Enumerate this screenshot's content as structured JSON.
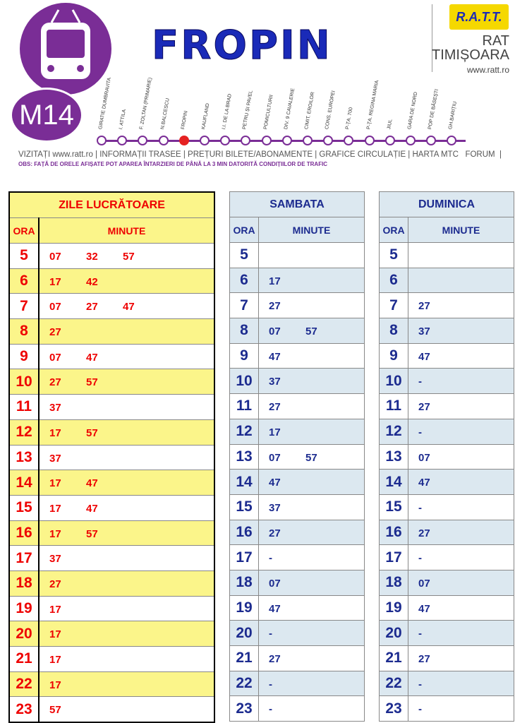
{
  "header": {
    "title": "FROPIN",
    "route": "M14",
    "org_logo": "R.A.T.T.",
    "org_name_1": "RAT",
    "org_name_2": "TIMIȘOARA",
    "website": "www.ratt.ro",
    "stops": [
      "GIRATIE DUMBRAVITA",
      "I. ATTILA",
      "F. ZOLTAN (PRIMARIE)",
      "N.BALCESCU",
      "FROPIN",
      "KAUFLAND",
      "I.I. DE LA BRAD",
      "PETRU ȘI PAVEL",
      "POMICULTURII",
      "DIV. 9 CAVALERIE",
      "CIMIT. EROILOR",
      "CONS. EUROPEI",
      "P-ȚA. 700",
      "P-ȚA. REGINA MARIA",
      "JIUL",
      "GARA DE NORD",
      "POP DE BĂSEȘTI",
      "GH.BARIȚIU"
    ],
    "current_stop": "FROPIN",
    "links": "VIZITAȚI www.ratt.ro | INFORMAȚII TRASEE | PREȚURI BILETE/ABONAMENTE | GRAFICE CIRCULAȚIE | HARTA MTC   FORUM  |",
    "notice": "OBS: FAȚĂ DE ORELE AFIȘATE POT APAREA ÎNTARZIERI DE PÂNĂ LA 3 MIN DATORITĂ CONDIȚIILOR DE TRAFIC"
  },
  "colors": {
    "purple": "#7a2d96",
    "blue": "#1a2ab8",
    "red": "#e00000",
    "yellow": "#fbf58a",
    "lightblue": "#dce8f0"
  },
  "tables": [
    {
      "title": "ZILE LUCRĂTOARE",
      "ora": "ORA",
      "minute": "MINUTE",
      "rows": [
        [
          "5",
          [
            "07",
            "32",
            "57"
          ]
        ],
        [
          "6",
          [
            "17",
            "42"
          ]
        ],
        [
          "7",
          [
            "07",
            "27",
            "47"
          ]
        ],
        [
          "8",
          [
            "27"
          ]
        ],
        [
          "9",
          [
            "07",
            "47"
          ]
        ],
        [
          "10",
          [
            "27",
            "57"
          ]
        ],
        [
          "11",
          [
            "37"
          ]
        ],
        [
          "12",
          [
            "17",
            "57"
          ]
        ],
        [
          "13",
          [
            "37"
          ]
        ],
        [
          "14",
          [
            "17",
            "47"
          ]
        ],
        [
          "15",
          [
            "17",
            "47"
          ]
        ],
        [
          "16",
          [
            "17",
            "57"
          ]
        ],
        [
          "17",
          [
            "37"
          ]
        ],
        [
          "18",
          [
            "27"
          ]
        ],
        [
          "19",
          [
            "17"
          ]
        ],
        [
          "20",
          [
            "17"
          ]
        ],
        [
          "21",
          [
            "17"
          ]
        ],
        [
          "22",
          [
            "17"
          ]
        ],
        [
          "23",
          [
            "57"
          ]
        ]
      ]
    },
    {
      "title": "SAMBATA",
      "ora": "ORA",
      "minute": "MINUTE",
      "rows": [
        [
          "5",
          []
        ],
        [
          "6",
          [
            "17"
          ]
        ],
        [
          "7",
          [
            "27"
          ]
        ],
        [
          "8",
          [
            "07",
            "57"
          ]
        ],
        [
          "9",
          [
            "47"
          ]
        ],
        [
          "10",
          [
            "37"
          ]
        ],
        [
          "11",
          [
            "27"
          ]
        ],
        [
          "12",
          [
            "17"
          ]
        ],
        [
          "13",
          [
            "07",
            "57"
          ]
        ],
        [
          "14",
          [
            "47"
          ]
        ],
        [
          "15",
          [
            "37"
          ]
        ],
        [
          "16",
          [
            "27"
          ]
        ],
        [
          "17",
          [
            "-"
          ]
        ],
        [
          "18",
          [
            "07"
          ]
        ],
        [
          "19",
          [
            "47"
          ]
        ],
        [
          "20",
          [
            "-"
          ]
        ],
        [
          "21",
          [
            "27"
          ]
        ],
        [
          "22",
          [
            "-"
          ]
        ],
        [
          "23",
          [
            "-"
          ]
        ]
      ]
    },
    {
      "title": "DUMINICA",
      "ora": "ORA",
      "minute": "MINUTE",
      "rows": [
        [
          "5",
          []
        ],
        [
          "6",
          []
        ],
        [
          "7",
          [
            "27"
          ]
        ],
        [
          "8",
          [
            "37"
          ]
        ],
        [
          "9",
          [
            "47"
          ]
        ],
        [
          "10",
          [
            "-"
          ]
        ],
        [
          "11",
          [
            "27"
          ]
        ],
        [
          "12",
          [
            "-"
          ]
        ],
        [
          "13",
          [
            "07"
          ]
        ],
        [
          "14",
          [
            "47"
          ]
        ],
        [
          "15",
          [
            "-"
          ]
        ],
        [
          "16",
          [
            "27"
          ]
        ],
        [
          "17",
          [
            "-"
          ]
        ],
        [
          "18",
          [
            "07"
          ]
        ],
        [
          "19",
          [
            "47"
          ]
        ],
        [
          "20",
          [
            "-"
          ]
        ],
        [
          "21",
          [
            "27"
          ]
        ],
        [
          "22",
          [
            "-"
          ]
        ],
        [
          "23",
          [
            "-"
          ]
        ]
      ]
    }
  ]
}
